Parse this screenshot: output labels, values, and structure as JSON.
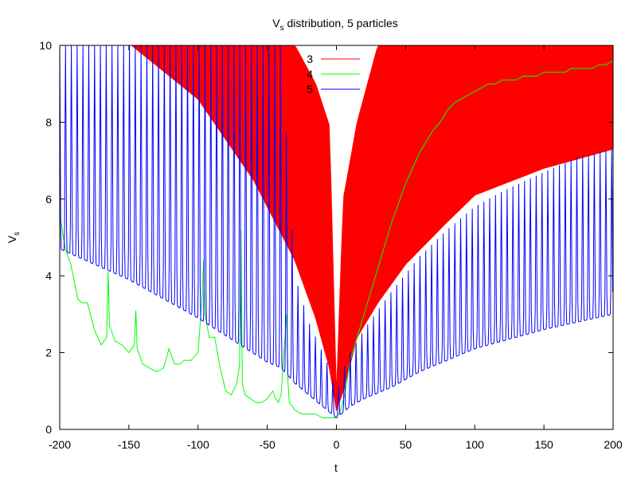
{
  "chart_data": {
    "type": "line",
    "title": "V",
    "title_sub": "s",
    "title_rest": " distribution, 5 particles",
    "xlabel": "t",
    "ylabel": "V",
    "ylabel_sub": "s",
    "xlim": [
      -200,
      200
    ],
    "ylim": [
      0,
      10
    ],
    "xticks": [
      -200,
      -150,
      -100,
      -50,
      0,
      50,
      100,
      150,
      200
    ],
    "xtick_labels": [
      "-200",
      "-150",
      "-100",
      "-50",
      "0",
      "50",
      "100",
      "150",
      "200"
    ],
    "yticks": [
      0,
      2,
      4,
      6,
      8,
      10
    ],
    "ytick_labels": [
      "0",
      "2",
      "4",
      "6",
      "8",
      "10"
    ],
    "grid": false,
    "legend_position": "top-center",
    "series": [
      {
        "name": "3",
        "color": "#ff0000",
        "envelope": {
          "x": [
            -200,
            -148,
            -100,
            -60,
            -30,
            -15,
            -5,
            0,
            5,
            15,
            30,
            50,
            80,
            100,
            150,
            200
          ],
          "min": [
            10,
            10,
            8.6,
            6.5,
            4.4,
            2.9,
            1.6,
            0.5,
            1.0,
            2.4,
            3.3,
            4.3,
            5.4,
            6.1,
            6.8,
            7.3
          ],
          "max": [
            10,
            10,
            10,
            10,
            10,
            9.0,
            7.9,
            0.9,
            6.0,
            8.0,
            10,
            10,
            10,
            10,
            10,
            10
          ]
        }
      },
      {
        "name": "4",
        "color": "#00ff00",
        "x": [
          -200,
          -196,
          -192,
          -187,
          -184,
          -180,
          -175,
          -170,
          -166,
          -165,
          -164,
          -160,
          -155,
          -150,
          -146,
          -145,
          -144,
          -140,
          -135,
          -130,
          -125,
          -121,
          -117,
          -113,
          -110,
          -105,
          -100,
          -97,
          -96,
          -95,
          -92,
          -88,
          -84,
          -80,
          -76,
          -72,
          -70,
          -69,
          -68,
          -66,
          -62,
          -58,
          -54,
          -50,
          -46,
          -44,
          -42,
          -40,
          -36,
          -35,
          -34,
          -30,
          -25,
          -20,
          -15,
          -10,
          -5,
          -3,
          0,
          3,
          6,
          10,
          15,
          20,
          25,
          30,
          35,
          40,
          45,
          50,
          55,
          60,
          65,
          70,
          75,
          80,
          85,
          90,
          95,
          100,
          105,
          110,
          115,
          120,
          125,
          130,
          135,
          140,
          145,
          150,
          155,
          160,
          165,
          170,
          175,
          180,
          185,
          190,
          195,
          200
        ],
        "values": [
          5.6,
          4.7,
          4.3,
          3.4,
          3.3,
          3.3,
          2.6,
          2.2,
          2.4,
          4.1,
          2.7,
          2.3,
          2.2,
          2.0,
          2.2,
          3.1,
          2.1,
          1.7,
          1.6,
          1.5,
          1.6,
          2.1,
          1.7,
          1.7,
          1.8,
          1.8,
          2.0,
          3.5,
          4.4,
          3.0,
          2.4,
          2.4,
          1.6,
          1.0,
          0.9,
          1.2,
          1.7,
          5.2,
          1.2,
          0.9,
          0.8,
          0.7,
          0.7,
          0.8,
          1.0,
          0.8,
          0.7,
          0.9,
          3.0,
          1.2,
          0.7,
          0.5,
          0.4,
          0.4,
          0.4,
          0.3,
          0.3,
          0.3,
          0.3,
          0.5,
          0.9,
          1.8,
          2.4,
          3.0,
          3.6,
          4.2,
          4.8,
          5.4,
          5.9,
          6.4,
          6.8,
          7.2,
          7.5,
          7.8,
          8.0,
          8.3,
          8.5,
          8.6,
          8.7,
          8.8,
          8.9,
          9.0,
          9.0,
          9.1,
          9.1,
          9.1,
          9.2,
          9.2,
          9.2,
          9.3,
          9.3,
          9.3,
          9.3,
          9.4,
          9.4,
          9.4,
          9.4,
          9.5,
          9.5,
          9.6
        ]
      },
      {
        "name": "5",
        "color": "#0000ff",
        "envelope": {
          "x": [
            -200,
            -150,
            -100,
            -50,
            -40,
            -30,
            -20,
            -10,
            -5,
            0,
            5,
            10,
            20,
            40,
            60,
            80,
            100,
            120,
            150,
            175,
            200
          ],
          "min": [
            4.7,
            3.9,
            2.9,
            1.75,
            1.6,
            1.2,
            0.9,
            0.6,
            0.45,
            0.3,
            0.45,
            0.6,
            0.8,
            1.1,
            1.5,
            1.8,
            2.1,
            2.3,
            2.6,
            2.8,
            3.0
          ],
          "max": [
            10,
            10,
            10,
            10,
            10,
            4.0,
            2.8,
            2.0,
            1.6,
            0.9,
            1.6,
            2.0,
            2.6,
            3.6,
            4.5,
            5.2,
            5.8,
            6.2,
            6.7,
            7.1,
            7.3
          ]
        }
      }
    ]
  }
}
